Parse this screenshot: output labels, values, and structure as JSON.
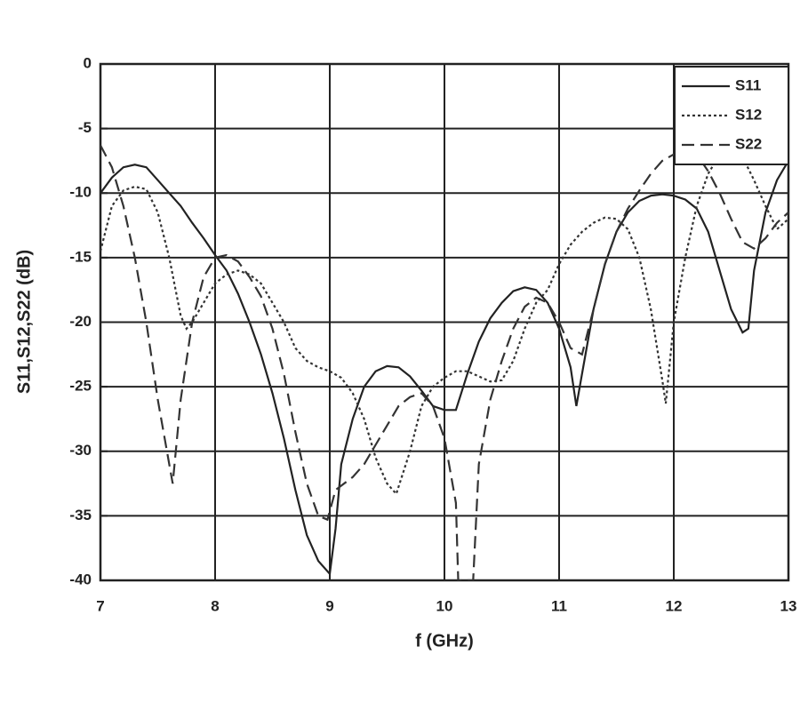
{
  "chart_data": {
    "type": "line",
    "xlabel": "f (GHz)",
    "ylabel": "S11,S12,S22 (dB)",
    "xlim": [
      7,
      13
    ],
    "xticks": [
      7,
      8,
      9,
      10,
      11,
      12,
      13
    ],
    "ylim": [
      -40,
      0
    ],
    "yticks": [
      0,
      -5,
      -10,
      -15,
      -20,
      -25,
      -30,
      -35,
      -40
    ],
    "grid": true,
    "legend": "top-right",
    "series": [
      {
        "name": "S11",
        "color": "#222222",
        "linestyle": "solid",
        "x": [
          7,
          7.1,
          7.2,
          7.3,
          7.4,
          7.5,
          7.6,
          7.7,
          7.8,
          7.9,
          8.0,
          8.1,
          8.2,
          8.3,
          8.4,
          8.5,
          8.6,
          8.7,
          8.8,
          8.9,
          9.0,
          9.05,
          9.1,
          9.2,
          9.3,
          9.4,
          9.5,
          9.6,
          9.7,
          9.8,
          9.9,
          10.0,
          10.1,
          10.2,
          10.3,
          10.4,
          10.5,
          10.6,
          10.7,
          10.8,
          10.9,
          11.0,
          11.1,
          11.15,
          11.2,
          11.3,
          11.4,
          11.5,
          11.6,
          11.7,
          11.8,
          11.9,
          12.0,
          12.1,
          12.2,
          12.3,
          12.4,
          12.5,
          12.6,
          12.65,
          12.7,
          12.8,
          12.9,
          13.0
        ],
        "values": [
          -10,
          -8.8,
          -8,
          -7.8,
          -8,
          -9,
          -10,
          -11,
          -12.3,
          -13.5,
          -14.8,
          -16,
          -17.8,
          -20,
          -22.5,
          -25.5,
          -29,
          -33,
          -36.5,
          -38.5,
          -39.5,
          -36,
          -31,
          -27.5,
          -25,
          -23.8,
          -23.4,
          -23.5,
          -24.2,
          -25.3,
          -26.5,
          -26.8,
          -26.8,
          -24,
          -21.5,
          -19.7,
          -18.5,
          -17.6,
          -17.3,
          -17.5,
          -18.5,
          -20.5,
          -23.5,
          -26.5,
          -24,
          -19,
          -15.5,
          -13,
          -11.5,
          -10.6,
          -10.2,
          -10.1,
          -10.2,
          -10.5,
          -11.2,
          -13,
          -16,
          -19,
          -20.8,
          -20.5,
          -16,
          -11.5,
          -9,
          -7.5
        ]
      },
      {
        "name": "S12",
        "color": "#333333",
        "linestyle": "dotted",
        "x": [
          7,
          7.1,
          7.2,
          7.3,
          7.4,
          7.5,
          7.6,
          7.7,
          7.75,
          7.8,
          7.9,
          8.0,
          8.1,
          8.2,
          8.3,
          8.4,
          8.5,
          8.6,
          8.7,
          8.8,
          8.9,
          9.0,
          9.1,
          9.2,
          9.3,
          9.4,
          9.5,
          9.58,
          9.7,
          9.8,
          9.9,
          10.0,
          10.1,
          10.2,
          10.3,
          10.4,
          10.5,
          10.6,
          10.7,
          10.8,
          10.9,
          11.0,
          11.1,
          11.2,
          11.3,
          11.4,
          11.5,
          11.6,
          11.7,
          11.8,
          11.9,
          11.93,
          12.0,
          12.1,
          12.2,
          12.3,
          12.4,
          12.5,
          12.6,
          12.7,
          12.8,
          12.9,
          13.0
        ],
        "values": [
          -14.5,
          -11,
          -9.8,
          -9.5,
          -9.7,
          -11.5,
          -15,
          -19.5,
          -20.5,
          -20,
          -18.5,
          -17,
          -16.3,
          -16,
          -16.3,
          -17,
          -18.5,
          -20,
          -22,
          -23,
          -23.5,
          -23.8,
          -24.3,
          -25.5,
          -27.5,
          -30.5,
          -32.5,
          -33.3,
          -30,
          -26.5,
          -25,
          -24.3,
          -23.8,
          -23.8,
          -24.2,
          -24.6,
          -24.5,
          -23,
          -20.5,
          -18.5,
          -17.5,
          -15.5,
          -14,
          -13,
          -12.3,
          -11.9,
          -12,
          -12.8,
          -15,
          -19,
          -24.5,
          -26.3,
          -20,
          -15,
          -11,
          -8.5,
          -7,
          -6.7,
          -7.2,
          -9,
          -11,
          -12.8,
          -12
        ]
      },
      {
        "name": "S22",
        "color": "#333333",
        "linestyle": "dashed",
        "x": [
          7,
          7.1,
          7.2,
          7.3,
          7.4,
          7.5,
          7.6,
          7.63,
          7.7,
          7.8,
          7.9,
          8.0,
          8.1,
          8.2,
          8.3,
          8.4,
          8.5,
          8.6,
          8.7,
          8.8,
          8.9,
          8.98,
          9.05,
          9.2,
          9.3,
          9.4,
          9.5,
          9.6,
          9.7,
          9.8,
          9.9,
          10.0,
          10.1,
          10.12,
          10.25,
          10.3,
          10.4,
          10.5,
          10.6,
          10.7,
          10.8,
          10.9,
          11.0,
          11.1,
          11.2,
          11.3,
          11.4,
          11.5,
          11.6,
          11.7,
          11.8,
          11.9,
          12.0,
          12.1,
          12.2,
          12.3,
          12.4,
          12.5,
          12.6,
          12.7,
          12.8,
          12.9,
          13.0
        ],
        "values": [
          -6.3,
          -8,
          -11,
          -15,
          -20,
          -26,
          -31,
          -32.5,
          -26,
          -20,
          -16.5,
          -15,
          -14.8,
          -15.3,
          -16.5,
          -18,
          -20.5,
          -24,
          -28.5,
          -32.5,
          -35,
          -35.3,
          -33,
          -32,
          -31,
          -29.5,
          -28,
          -26.5,
          -25.8,
          -25.5,
          -26.5,
          -29,
          -34,
          -40,
          -40,
          -31,
          -26,
          -23,
          -20.5,
          -18.8,
          -18.1,
          -18.5,
          -20,
          -22,
          -22.5,
          -19,
          -15.5,
          -13,
          -11.2,
          -9.8,
          -8.5,
          -7.5,
          -7,
          -6.8,
          -7,
          -8.3,
          -10,
          -12,
          -13.8,
          -14.3,
          -13.5,
          -12.3,
          -11.5
        ]
      }
    ]
  }
}
